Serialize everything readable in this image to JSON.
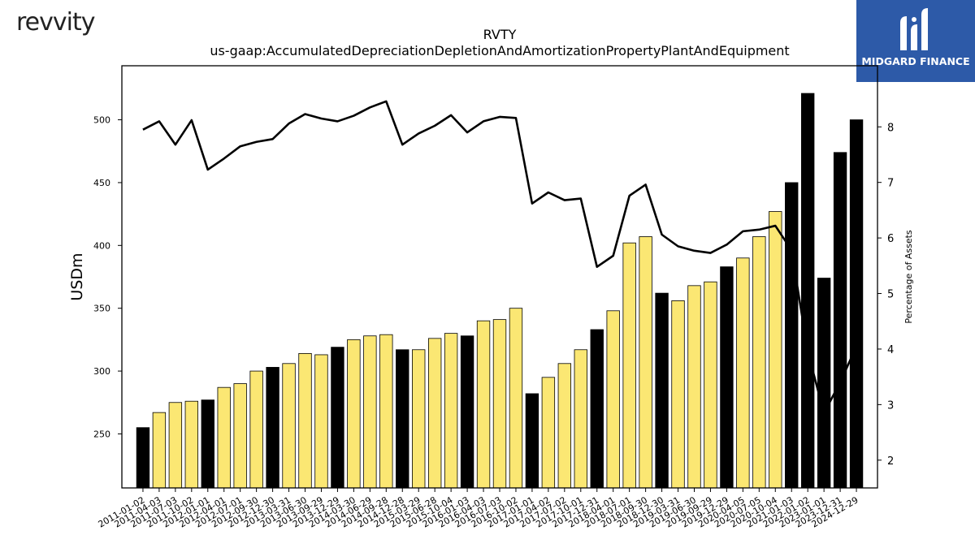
{
  "brand": {
    "left_logo_text": "revvity",
    "right_logo_text": "MIDGARD FINANCE"
  },
  "chart_data": {
    "type": "bar",
    "title": "RVTY",
    "subtitle": "us-gaap:AccumulatedDepreciationDepletionAndAmortizationPropertyPlantAndEquipment",
    "ylabel": "USDm",
    "y2label": "Percentage of Assets",
    "ylim": [
      207,
      543
    ],
    "y2lim": [
      1.5,
      9.1
    ],
    "yticks": [
      250,
      300,
      350,
      400,
      450,
      500
    ],
    "y2ticks": [
      2,
      3,
      4,
      5,
      6,
      7,
      8
    ],
    "categories": [
      "2011-01-02",
      "2011-04-03",
      "2011-07-03",
      "2011-10-02",
      "2012-01-01",
      "2012-04-01",
      "2012-07-01",
      "2012-09-30",
      "2012-12-30",
      "2013-03-31",
      "2013-06-30",
      "2013-09-29",
      "2013-12-29",
      "2014-03-30",
      "2014-06-29",
      "2014-09-28",
      "2014-12-28",
      "2015-03-29",
      "2015-06-28",
      "2015-10-04",
      "2016-01-03",
      "2016-04-03",
      "2016-07-03",
      "2016-10-02",
      "2017-01-01",
      "2017-04-02",
      "2017-07-02",
      "2017-10-01",
      "2017-12-31",
      "2018-04-01",
      "2018-07-01",
      "2018-09-30",
      "2018-12-30",
      "2019-03-31",
      "2019-06-30",
      "2019-09-29",
      "2019-12-29",
      "2020-04-05",
      "2020-07-05",
      "2020-10-04",
      "2021-01-03",
      "2022-01-02",
      "2023-01-01",
      "2023-12-31",
      "2024-12-29"
    ],
    "series": [
      {
        "values": [
          255,
          267,
          275,
          276,
          277,
          287,
          290,
          300,
          303,
          306,
          314,
          313,
          319,
          325,
          328,
          329,
          317,
          317,
          326,
          330,
          328,
          340,
          341,
          350,
          282,
          295,
          306,
          317,
          333,
          348,
          402,
          407,
          362,
          356,
          368,
          371,
          383,
          390,
          407,
          427,
          450,
          521,
          374,
          474,
          500
        ]
      },
      {
        "values": [
          7.95,
          8.1,
          7.68,
          8.12,
          7.23,
          7.43,
          7.65,
          7.73,
          7.78,
          8.06,
          8.23,
          8.15,
          8.1,
          8.2,
          8.35,
          8.46,
          7.68,
          7.88,
          8.02,
          8.21,
          7.9,
          8.1,
          8.18,
          8.16,
          6.62,
          6.82,
          6.68,
          6.71,
          5.48,
          5.68,
          6.76,
          6.96,
          6.06,
          5.85,
          5.77,
          5.73,
          5.88,
          6.12,
          6.15,
          6.22,
          5.78,
          3.95,
          2.85,
          3.4,
          4.05
        ]
      }
    ],
    "bar_colors": {
      "highlight": "#000000",
      "normal": "#fbe773"
    },
    "highlight_indices": [
      0,
      4,
      8,
      12,
      16,
      20,
      24,
      28,
      32,
      36,
      40,
      41,
      42,
      43,
      44
    ],
    "line_color": "#000000",
    "grid": false
  }
}
